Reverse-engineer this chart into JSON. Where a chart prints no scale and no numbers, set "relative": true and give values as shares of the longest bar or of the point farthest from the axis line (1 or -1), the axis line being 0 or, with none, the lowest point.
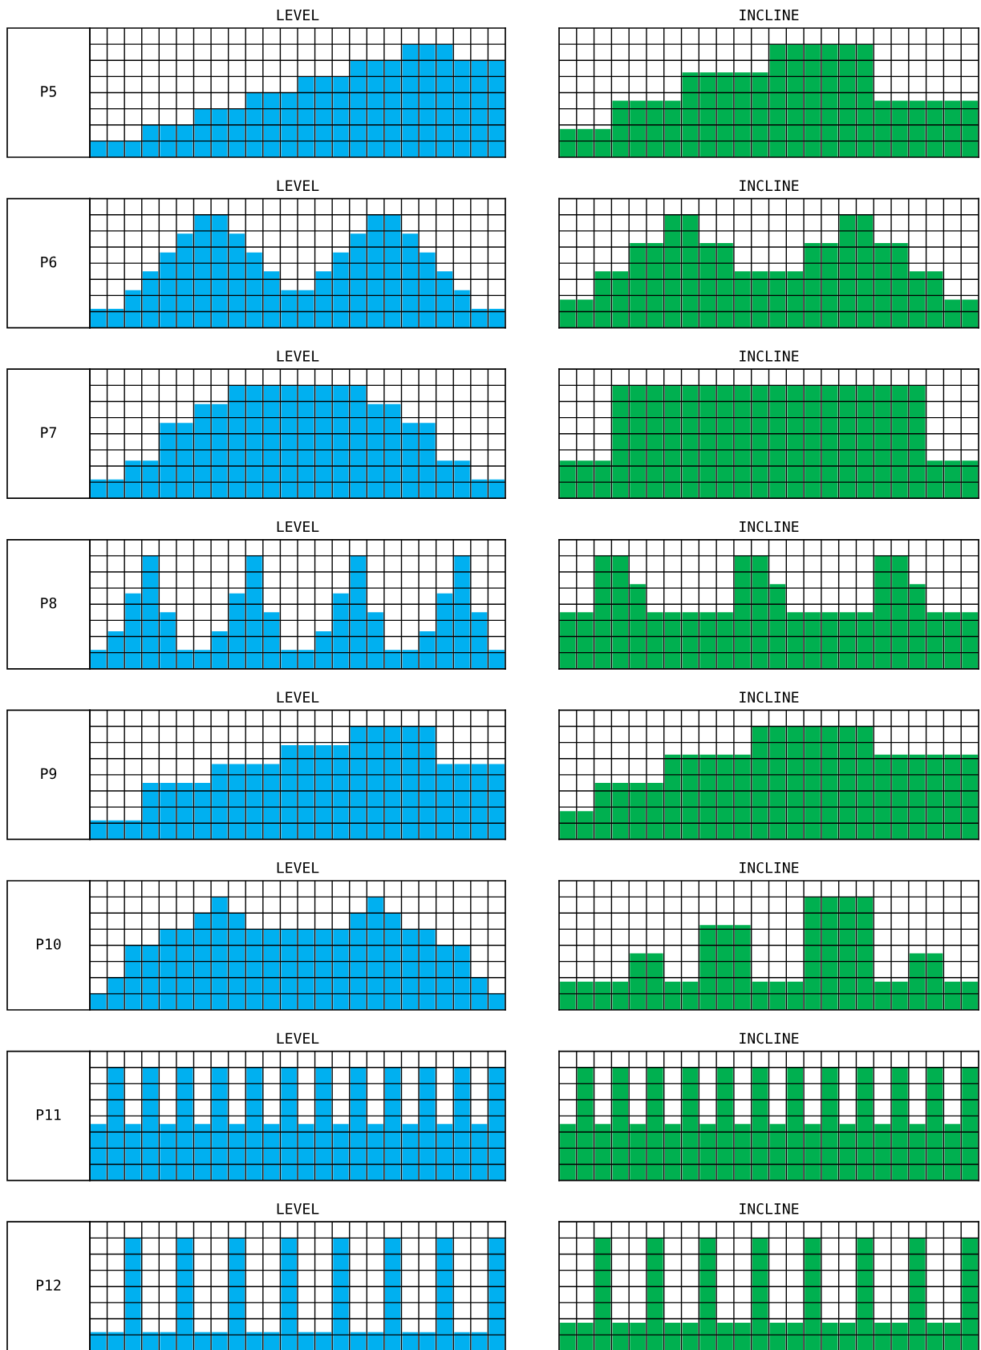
{
  "chart_data": [
    {
      "type": "bar",
      "title": "LEVEL",
      "ylabel": "P5",
      "relative": true,
      "grid": true,
      "color": "#00b0f0",
      "categories": [
        null,
        null,
        null,
        null,
        null,
        null,
        null,
        null,
        null,
        null,
        null,
        null,
        null,
        null,
        null,
        null,
        null,
        null,
        null,
        null,
        null,
        null,
        null,
        null
      ],
      "values": [
        0.143,
        0.143,
        0.143,
        0.286,
        0.286,
        0.286,
        0.429,
        0.429,
        0.429,
        0.571,
        0.571,
        0.571,
        0.714,
        0.714,
        0.714,
        0.857,
        0.857,
        0.857,
        1,
        1,
        1,
        0.857,
        0.857,
        0.857
      ]
    },
    {
      "type": "bar",
      "title": "INCLINE",
      "relative": true,
      "grid": true,
      "color": "#00b050",
      "categories": [
        null,
        null,
        null,
        null,
        null,
        null,
        null,
        null,
        null,
        null,
        null,
        null,
        null,
        null,
        null,
        null,
        null,
        null,
        null,
        null,
        null,
        null,
        null,
        null
      ],
      "values": [
        0.25,
        0.25,
        0.25,
        0.5,
        0.5,
        0.5,
        0.5,
        0.75,
        0.75,
        0.75,
        0.75,
        0.75,
        1,
        1,
        1,
        1,
        1,
        1,
        0.5,
        0.5,
        0.5,
        0.5,
        0.5,
        0.5
      ]
    },
    {
      "type": "bar",
      "title": "LEVEL",
      "ylabel": "P6",
      "relative": true,
      "grid": true,
      "color": "#00b0f0",
      "categories": [
        null,
        null,
        null,
        null,
        null,
        null,
        null,
        null,
        null,
        null,
        null,
        null,
        null,
        null,
        null,
        null,
        null,
        null,
        null,
        null,
        null,
        null,
        null,
        null
      ],
      "values": [
        0.167,
        0.167,
        0.333,
        0.5,
        0.667,
        0.833,
        1,
        1,
        0.833,
        0.667,
        0.5,
        0.333,
        0.333,
        0.5,
        0.667,
        0.833,
        1,
        1,
        0.833,
        0.667,
        0.5,
        0.333,
        0.167,
        0.167
      ]
    },
    {
      "type": "bar",
      "title": "INCLINE",
      "relative": true,
      "grid": true,
      "color": "#00b050",
      "categories": [
        null,
        null,
        null,
        null,
        null,
        null,
        null,
        null,
        null,
        null,
        null,
        null,
        null,
        null,
        null,
        null,
        null,
        null,
        null,
        null,
        null,
        null,
        null,
        null
      ],
      "values": [
        0.25,
        0.25,
        0.5,
        0.5,
        0.75,
        0.75,
        1,
        1,
        0.75,
        0.75,
        0.5,
        0.5,
        0.5,
        0.5,
        0.75,
        0.75,
        1,
        1,
        0.75,
        0.75,
        0.5,
        0.5,
        0.25,
        0.25
      ]
    },
    {
      "type": "bar",
      "title": "LEVEL",
      "ylabel": "P7",
      "relative": true,
      "grid": true,
      "color": "#00b0f0",
      "categories": [
        null,
        null,
        null,
        null,
        null,
        null,
        null,
        null,
        null,
        null,
        null,
        null,
        null,
        null,
        null,
        null,
        null,
        null,
        null,
        null,
        null,
        null,
        null,
        null
      ],
      "values": [
        0.167,
        0.167,
        0.333,
        0.333,
        0.667,
        0.667,
        0.833,
        0.833,
        1,
        1,
        1,
        1,
        1,
        1,
        1,
        1,
        0.833,
        0.833,
        0.667,
        0.667,
        0.333,
        0.333,
        0.167,
        0.167
      ]
    },
    {
      "type": "bar",
      "title": "INCLINE",
      "relative": true,
      "grid": true,
      "color": "#00b050",
      "categories": [
        null,
        null,
        null,
        null,
        null,
        null,
        null,
        null,
        null,
        null,
        null,
        null,
        null,
        null,
        null,
        null,
        null,
        null,
        null,
        null,
        null,
        null,
        null,
        null
      ],
      "values": [
        0.333,
        0.333,
        0.333,
        1,
        1,
        1,
        1,
        1,
        1,
        1,
        1,
        1,
        1,
        1,
        1,
        1,
        1,
        1,
        1,
        1,
        1,
        0.333,
        0.333,
        0.333
      ]
    },
    {
      "type": "bar",
      "title": "LEVEL",
      "ylabel": "P8",
      "relative": true,
      "grid": true,
      "color": "#00b0f0",
      "categories": [
        null,
        null,
        null,
        null,
        null,
        null,
        null,
        null,
        null,
        null,
        null,
        null,
        null,
        null,
        null,
        null,
        null,
        null,
        null,
        null,
        null,
        null,
        null,
        null
      ],
      "values": [
        0.167,
        0.333,
        0.667,
        1,
        0.5,
        0.167,
        0.167,
        0.333,
        0.667,
        1,
        0.5,
        0.167,
        0.167,
        0.333,
        0.667,
        1,
        0.5,
        0.167,
        0.167,
        0.333,
        0.667,
        1,
        0.5,
        0.167
      ]
    },
    {
      "type": "bar",
      "title": "INCLINE",
      "relative": true,
      "grid": true,
      "color": "#00b050",
      "categories": [
        null,
        null,
        null,
        null,
        null,
        null,
        null,
        null,
        null,
        null,
        null,
        null,
        null,
        null,
        null,
        null,
        null,
        null,
        null,
        null,
        null,
        null,
        null,
        null
      ],
      "values": [
        0.5,
        0.5,
        1,
        1,
        0.75,
        0.5,
        0.5,
        0.5,
        0.5,
        0.5,
        1,
        1,
        0.75,
        0.5,
        0.5,
        0.5,
        0.5,
        0.5,
        1,
        1,
        0.75,
        0.5,
        0.5,
        0.5
      ]
    },
    {
      "type": "bar",
      "title": "LEVEL",
      "ylabel": "P9",
      "relative": true,
      "grid": true,
      "color": "#00b0f0",
      "categories": [
        null,
        null,
        null,
        null,
        null,
        null,
        null,
        null,
        null,
        null,
        null,
        null,
        null,
        null,
        null,
        null,
        null,
        null,
        null,
        null,
        null,
        null,
        null,
        null
      ],
      "values": [
        0.167,
        0.167,
        0.167,
        0.5,
        0.5,
        0.5,
        0.5,
        0.667,
        0.667,
        0.667,
        0.667,
        0.833,
        0.833,
        0.833,
        0.833,
        1,
        1,
        1,
        1,
        1,
        0.667,
        0.667,
        0.667,
        0.667
      ]
    },
    {
      "type": "bar",
      "title": "INCLINE",
      "relative": true,
      "grid": true,
      "color": "#00b050",
      "categories": [
        null,
        null,
        null,
        null,
        null,
        null,
        null,
        null,
        null,
        null,
        null,
        null,
        null,
        null,
        null,
        null,
        null,
        null,
        null,
        null,
        null,
        null,
        null,
        null
      ],
      "values": [
        0.25,
        0.25,
        0.5,
        0.5,
        0.5,
        0.5,
        0.75,
        0.75,
        0.75,
        0.75,
        0.75,
        1,
        1,
        1,
        1,
        1,
        1,
        1,
        0.75,
        0.75,
        0.75,
        0.75,
        0.75,
        0.75
      ]
    },
    {
      "type": "bar",
      "title": "LEVEL",
      "ylabel": "P10",
      "relative": true,
      "grid": true,
      "color": "#00b0f0",
      "categories": [
        null,
        null,
        null,
        null,
        null,
        null,
        null,
        null,
        null,
        null,
        null,
        null,
        null,
        null,
        null,
        null,
        null,
        null,
        null,
        null,
        null,
        null,
        null,
        null
      ],
      "values": [
        0.143,
        0.286,
        0.571,
        0.571,
        0.714,
        0.714,
        0.857,
        1,
        0.857,
        0.714,
        0.714,
        0.714,
        0.714,
        0.714,
        0.714,
        0.857,
        1,
        0.857,
        0.714,
        0.714,
        0.571,
        0.571,
        0.286,
        0.143
      ]
    },
    {
      "type": "bar",
      "title": "INCLINE",
      "relative": true,
      "grid": true,
      "color": "#00b050",
      "categories": [
        null,
        null,
        null,
        null,
        null,
        null,
        null,
        null,
        null,
        null,
        null,
        null,
        null,
        null,
        null,
        null,
        null,
        null,
        null,
        null,
        null,
        null,
        null,
        null
      ],
      "values": [
        0.25,
        0.25,
        0.25,
        0.25,
        0.5,
        0.5,
        0.25,
        0.25,
        0.75,
        0.75,
        0.75,
        0.25,
        0.25,
        0.25,
        1,
        1,
        1,
        1,
        0.25,
        0.25,
        0.5,
        0.5,
        0.25,
        0.25
      ]
    },
    {
      "type": "bar",
      "title": "LEVEL",
      "ylabel": "P11",
      "relative": true,
      "grid": true,
      "color": "#00b0f0",
      "categories": [
        null,
        null,
        null,
        null,
        null,
        null,
        null,
        null,
        null,
        null,
        null,
        null,
        null,
        null,
        null,
        null,
        null,
        null,
        null,
        null,
        null,
        null,
        null,
        null
      ],
      "values": [
        0.5,
        1,
        0.5,
        1,
        0.5,
        1,
        0.5,
        1,
        0.5,
        1,
        0.5,
        1,
        0.5,
        1,
        0.5,
        1,
        0.5,
        1,
        0.5,
        1,
        0.5,
        1,
        0.5,
        1
      ]
    },
    {
      "type": "bar",
      "title": "INCLINE",
      "relative": true,
      "grid": true,
      "color": "#00b050",
      "categories": [
        null,
        null,
        null,
        null,
        null,
        null,
        null,
        null,
        null,
        null,
        null,
        null,
        null,
        null,
        null,
        null,
        null,
        null,
        null,
        null,
        null,
        null,
        null,
        null
      ],
      "values": [
        0.5,
        1,
        0.5,
        1,
        0.5,
        1,
        0.5,
        1,
        0.5,
        1,
        0.5,
        1,
        0.5,
        1,
        0.5,
        1,
        0.5,
        1,
        0.5,
        1,
        0.5,
        1,
        0.5,
        1
      ]
    },
    {
      "type": "bar",
      "title": "LEVEL",
      "ylabel": "P12",
      "relative": true,
      "grid": true,
      "color": "#00b0f0",
      "categories": [
        null,
        null,
        null,
        null,
        null,
        null,
        null,
        null,
        null,
        null,
        null,
        null,
        null,
        null,
        null,
        null,
        null,
        null,
        null,
        null,
        null,
        null,
        null,
        null
      ],
      "values": [
        0.167,
        0.167,
        1,
        0.167,
        0.167,
        1,
        0.167,
        0.167,
        1,
        0.167,
        0.167,
        1,
        0.167,
        0.167,
        1,
        0.167,
        0.167,
        1,
        0.167,
        0.167,
        1,
        0.167,
        0.167,
        1
      ]
    },
    {
      "type": "bar",
      "title": "INCLINE",
      "relative": true,
      "grid": true,
      "color": "#00b050",
      "categories": [
        null,
        null,
        null,
        null,
        null,
        null,
        null,
        null,
        null,
        null,
        null,
        null,
        null,
        null,
        null,
        null,
        null,
        null,
        null,
        null,
        null,
        null,
        null,
        null
      ],
      "values": [
        0.25,
        0.25,
        1,
        0.25,
        0.25,
        1,
        0.25,
        0.25,
        1,
        0.25,
        0.25,
        1,
        0.25,
        0.25,
        1,
        0.25,
        0.25,
        1,
        0.25,
        0.25,
        1,
        0.25,
        0.25,
        1
      ]
    }
  ]
}
